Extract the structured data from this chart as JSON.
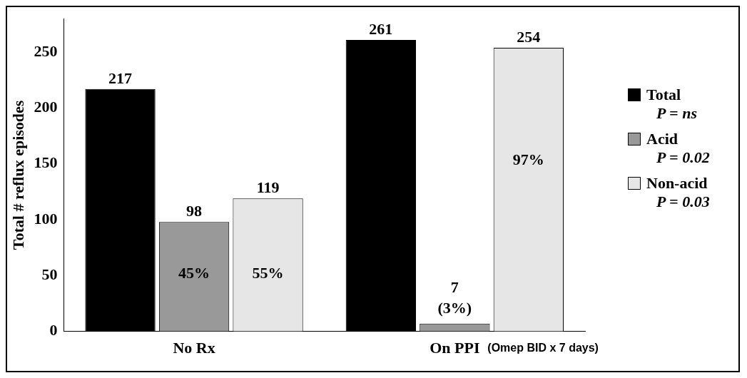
{
  "chart_data": {
    "type": "bar",
    "ylabel": "Total # reflux episodes",
    "categories": [
      "No Rx",
      "On PPI"
    ],
    "series": [
      {
        "name": "Total",
        "color": "#000000",
        "values": [
          217,
          261
        ]
      },
      {
        "name": "Acid",
        "color": "#999999",
        "values": [
          98,
          7
        ]
      },
      {
        "name": "Non-acid",
        "color": "#e6e6e6",
        "values": [
          119,
          254
        ]
      }
    ],
    "ylim": [
      0,
      280
    ],
    "yticks": [
      0,
      50,
      100,
      150,
      200,
      250
    ],
    "grid": false,
    "legend": "right",
    "data_labels": true,
    "annotations": [
      "45%",
      "55%",
      "97%",
      "(3%)",
      "P = ns",
      "P = 0.02",
      "P = 0.03",
      "(Omep BID x 7 days)"
    ]
  }
}
